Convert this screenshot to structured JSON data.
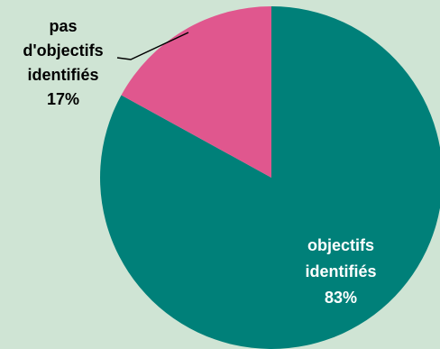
{
  "chart_data": {
    "type": "pie",
    "slices": [
      {
        "label_lines": [
          "objectifs",
          "identifiés"
        ],
        "percent_label": "83%",
        "value": 83,
        "color": "#008079",
        "text_color": "#ffffff"
      },
      {
        "label_lines": [
          "pas",
          "d'objectifs",
          "identifiés"
        ],
        "percent_label": "17%",
        "value": 17,
        "color": "#e0578e",
        "text_color": "#000000"
      }
    ],
    "background": "#cfe4d4",
    "title": "",
    "legend": "none"
  }
}
